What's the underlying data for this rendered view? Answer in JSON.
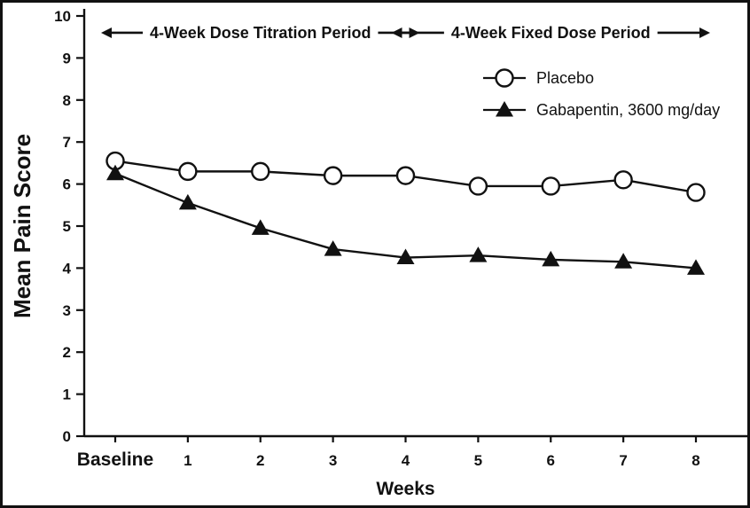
{
  "figure": {
    "background": "#ffffff",
    "ink": "#111111",
    "border_width": 3
  },
  "chart_data": {
    "type": "line",
    "title": "",
    "xlabel": "Weeks",
    "ylabel": "Mean Pain Score",
    "ylim": [
      0,
      10
    ],
    "yticks": [
      0,
      1,
      2,
      3,
      4,
      5,
      6,
      7,
      8,
      9,
      10
    ],
    "grid": false,
    "legend_position": "upper-right-inside",
    "categories": [
      "Baseline",
      "1",
      "2",
      "3",
      "4",
      "5",
      "6",
      "7",
      "8"
    ],
    "series": [
      {
        "name": "Placebo",
        "marker": "circle",
        "color": "#111111",
        "values": [
          6.55,
          6.3,
          6.3,
          6.2,
          6.2,
          5.95,
          5.95,
          6.1,
          5.8
        ]
      },
      {
        "name": "Gabapentin, 3600 mg/day",
        "marker": "triangle",
        "color": "#111111",
        "values": [
          6.25,
          5.55,
          4.95,
          4.45,
          4.25,
          4.3,
          4.2,
          4.15,
          4.0
        ]
      }
    ],
    "annotations": [
      {
        "text": "4-Week Dose Titration Period",
        "from_category": "Baseline",
        "to_category": "4",
        "y": 9.6
      },
      {
        "text": "4-Week Fixed Dose Period",
        "from_category": "4",
        "to_category": "8",
        "y": 9.6
      }
    ]
  }
}
